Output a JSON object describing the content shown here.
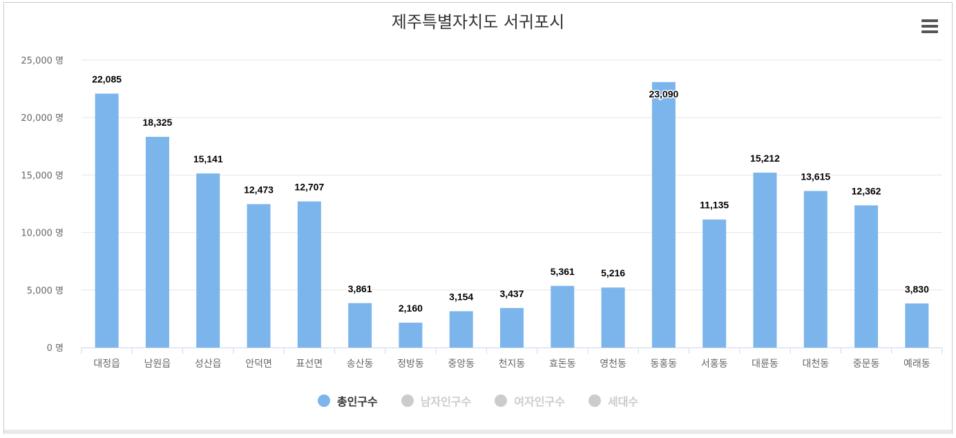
{
  "title": "제주특별자치도 서귀포시",
  "menu_icon": "hamburger-menu-icon",
  "colors": {
    "bar": "#7cb5ec",
    "axis": "#ccd6eb",
    "grid": "#e6e6e6",
    "label": "#666666",
    "datalabel": "#000000",
    "legend_active": "#333333",
    "legend_inactive": "#cccccc"
  },
  "chart_data": {
    "type": "bar",
    "categories": [
      "대정읍",
      "남원읍",
      "성산읍",
      "안덕면",
      "표선면",
      "송산동",
      "정방동",
      "중앙동",
      "천지동",
      "효돈동",
      "영천동",
      "동홍동",
      "서홍동",
      "대륜동",
      "대천동",
      "중문동",
      "예래동"
    ],
    "series": [
      {
        "name": "총인구수",
        "values": [
          22085,
          18325,
          15141,
          12473,
          12707,
          3861,
          2160,
          3154,
          3437,
          5361,
          5216,
          23090,
          11135,
          15212,
          13615,
          12362,
          3830
        ]
      }
    ],
    "data_labels": [
      "22,085",
      "18,325",
      "15,141",
      "12,473",
      "12,707",
      "3,861",
      "2,160",
      "3,154",
      "3,437",
      "5,361",
      "5,216",
      "23,090",
      "11,135",
      "15,212",
      "13,615",
      "12,362",
      "3,830"
    ],
    "y_ticks": [
      "0 명",
      "5,000 명",
      "10,000 명",
      "15,000 명",
      "20,000 명",
      "25,000 명"
    ],
    "ylim": [
      0,
      25000
    ],
    "grid": true,
    "legend_position": "bottom-center"
  },
  "legend": [
    {
      "label": "총인구수",
      "active": true
    },
    {
      "label": "남자인구수",
      "active": false
    },
    {
      "label": "여자인구수",
      "active": false
    },
    {
      "label": "세대수",
      "active": false
    }
  ]
}
